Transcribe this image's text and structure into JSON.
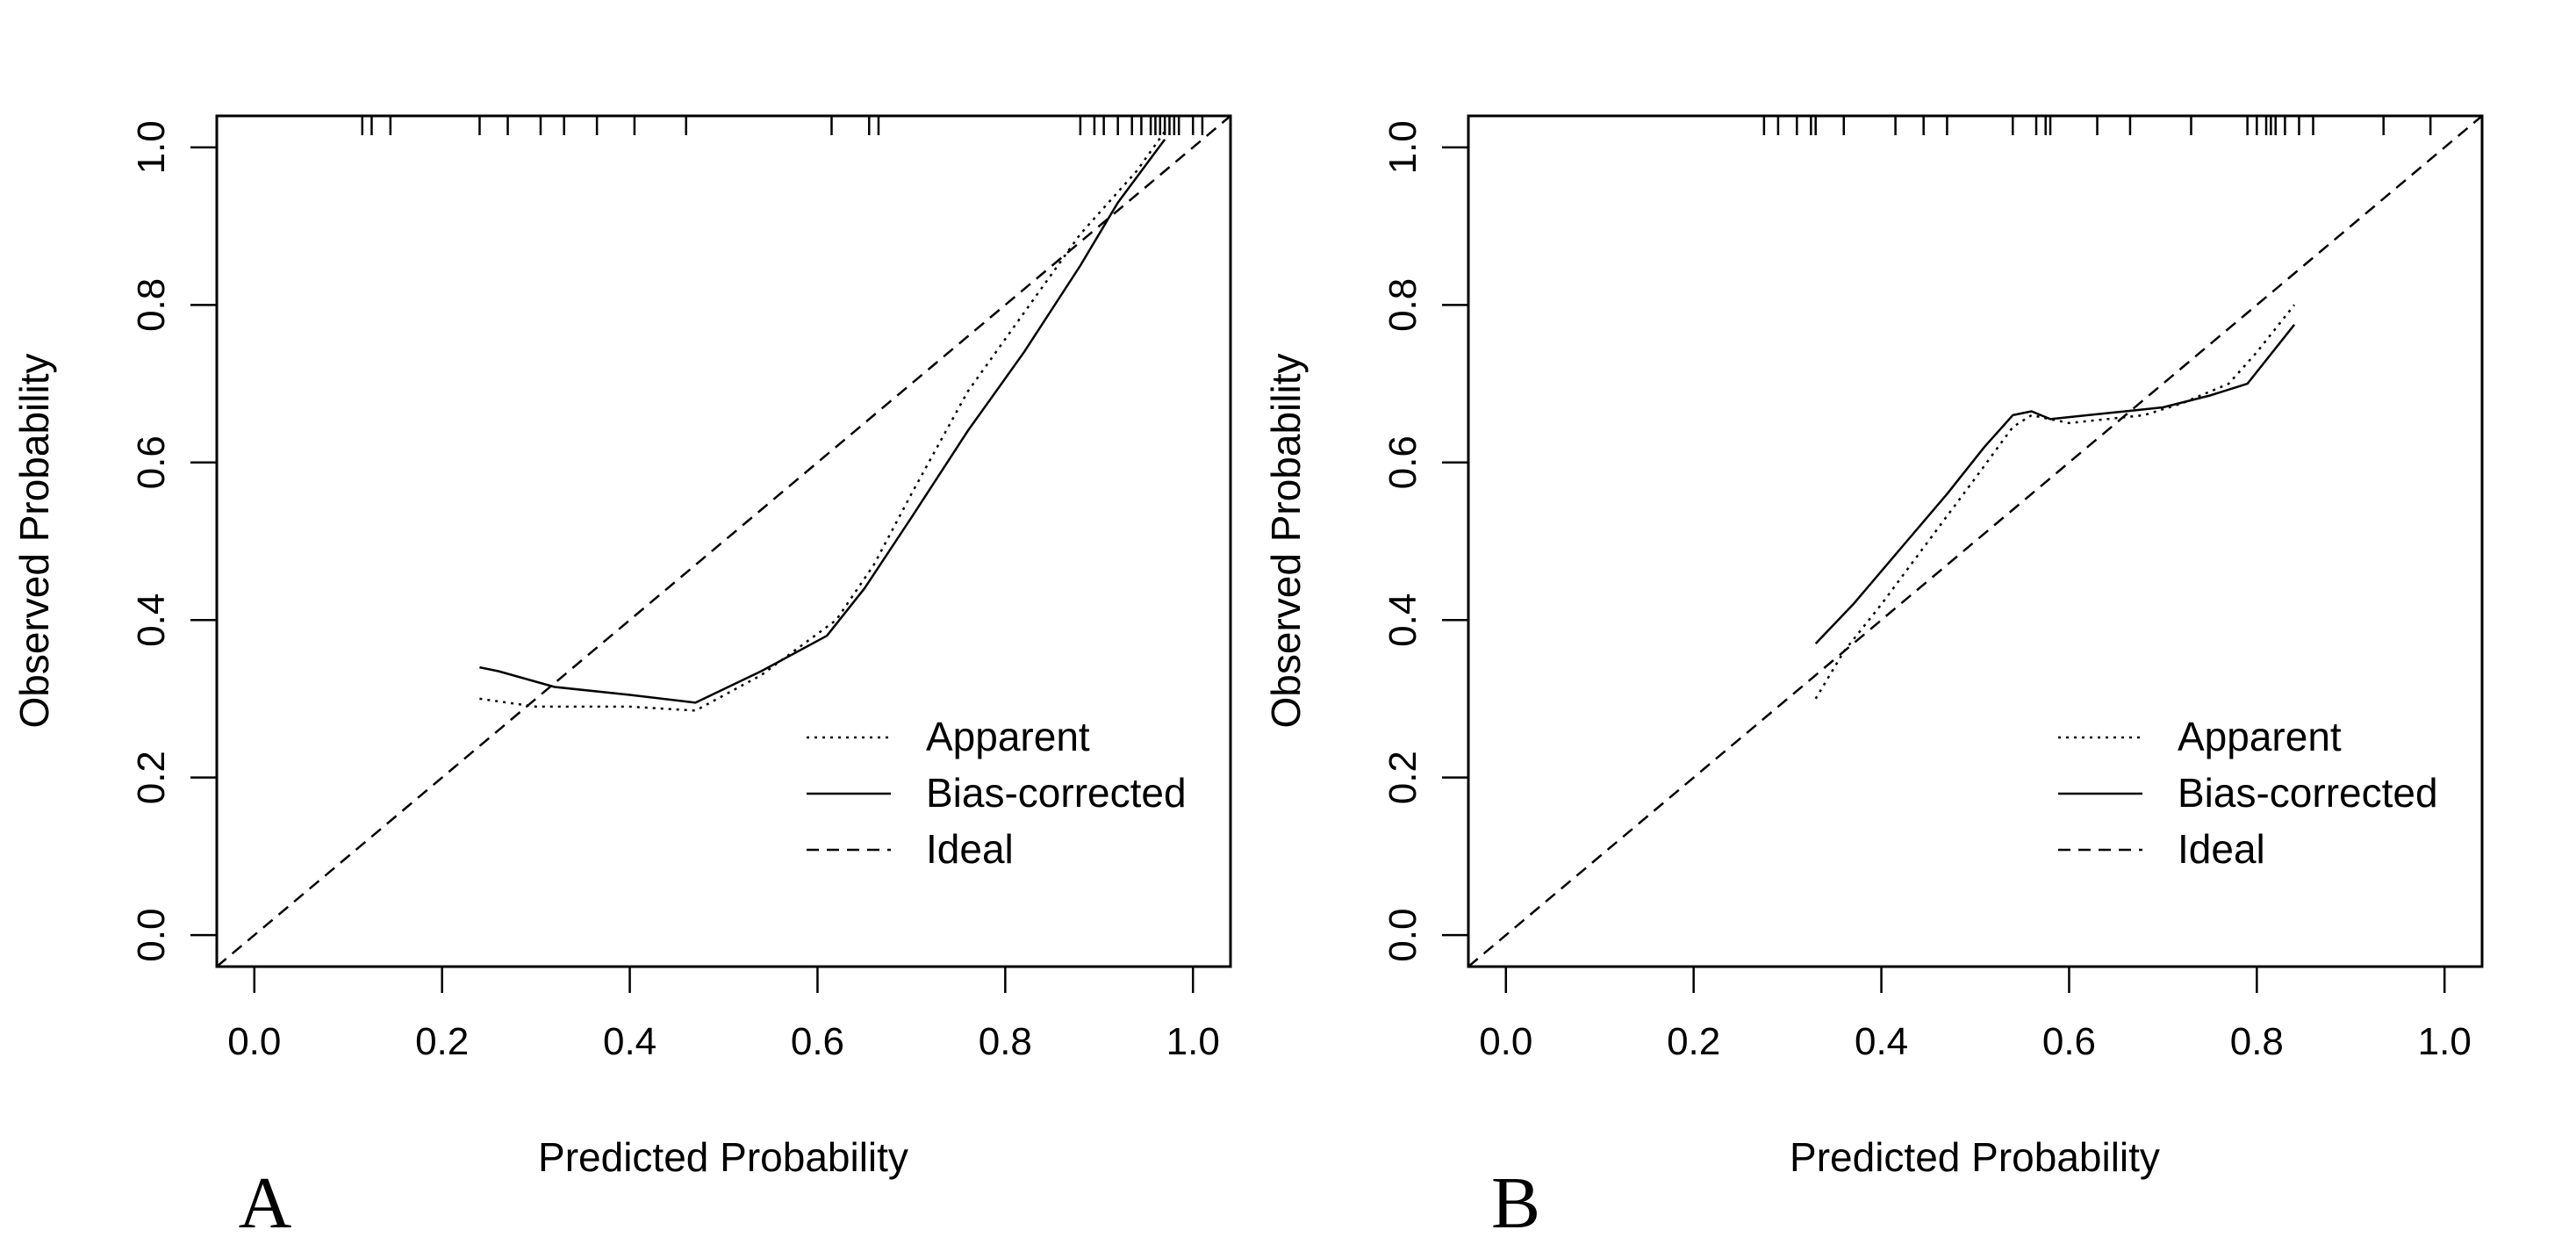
{
  "figure": {
    "colors": {
      "foreground": "#000000",
      "background": "#ffffff"
    }
  },
  "chart_data": [
    {
      "type": "line",
      "panel_label": "A",
      "xlabel": "Predicted Probability",
      "ylabel": "Observed Probability",
      "xlim": [
        -0.04,
        1.04
      ],
      "ylim": [
        -0.04,
        1.04
      ],
      "xticks": [
        "0.0",
        "0.2",
        "0.4",
        "0.6",
        "0.8",
        "1.0"
      ],
      "yticks": [
        "0.0",
        "0.2",
        "0.4",
        "0.6",
        "0.8",
        "1.0"
      ],
      "legend": {
        "position": "bottom-right",
        "entries": [
          "Apparent",
          "Bias-corrected",
          "Ideal"
        ]
      },
      "series": [
        {
          "name": "Apparent",
          "style": "dotted",
          "x": [
            0.24,
            0.3,
            0.4,
            0.47,
            0.54,
            0.62,
            0.66,
            0.7,
            0.76,
            0.82,
            0.88,
            0.94,
            0.97
          ],
          "y": [
            0.3,
            0.29,
            0.29,
            0.285,
            0.33,
            0.4,
            0.47,
            0.56,
            0.69,
            0.79,
            0.89,
            0.97,
            1.02
          ]
        },
        {
          "name": "Bias-corrected",
          "style": "solid",
          "x": [
            0.24,
            0.26,
            0.32,
            0.4,
            0.47,
            0.54,
            0.61,
            0.65,
            0.7,
            0.76,
            0.82,
            0.88,
            0.92,
            0.97
          ],
          "y": [
            0.34,
            0.335,
            0.315,
            0.305,
            0.295,
            0.335,
            0.38,
            0.44,
            0.53,
            0.64,
            0.74,
            0.85,
            0.93,
            1.01
          ]
        },
        {
          "name": "Ideal",
          "style": "dashed",
          "x": [
            -0.04,
            1.04
          ],
          "y": [
            -0.04,
            1.04
          ]
        }
      ],
      "rug": [
        0.115,
        0.125,
        0.145,
        0.24,
        0.27,
        0.305,
        0.33,
        0.365,
        0.405,
        0.46,
        0.615,
        0.655,
        0.665,
        0.88,
        0.895,
        0.905,
        0.92,
        0.935,
        0.945,
        0.955,
        0.96,
        0.965,
        0.97,
        0.975,
        0.98,
        0.985,
        1.0,
        1.01
      ]
    },
    {
      "type": "line",
      "panel_label": "B",
      "xlabel": "Predicted Probability",
      "ylabel": "Observed Probability",
      "xlim": [
        -0.04,
        1.04
      ],
      "ylim": [
        -0.04,
        1.04
      ],
      "xticks": [
        "0.0",
        "0.2",
        "0.4",
        "0.6",
        "0.8",
        "1.0"
      ],
      "yticks": [
        "0.0",
        "0.2",
        "0.4",
        "0.6",
        "0.8",
        "1.0"
      ],
      "legend": {
        "position": "bottom-right",
        "entries": [
          "Apparent",
          "Bias-corrected",
          "Ideal"
        ]
      },
      "series": [
        {
          "name": "Apparent",
          "style": "dotted",
          "x": [
            0.33,
            0.36,
            0.4,
            0.45,
            0.5,
            0.54,
            0.56,
            0.6,
            0.64,
            0.68,
            0.72,
            0.77,
            0.8,
            0.84
          ],
          "y": [
            0.3,
            0.36,
            0.42,
            0.5,
            0.58,
            0.645,
            0.66,
            0.65,
            0.655,
            0.66,
            0.675,
            0.7,
            0.74,
            0.8
          ]
        },
        {
          "name": "Bias-corrected",
          "style": "solid",
          "x": [
            0.33,
            0.37,
            0.42,
            0.47,
            0.51,
            0.54,
            0.56,
            0.58,
            0.62,
            0.66,
            0.7,
            0.75,
            0.79,
            0.84
          ],
          "y": [
            0.37,
            0.42,
            0.49,
            0.56,
            0.62,
            0.66,
            0.665,
            0.655,
            0.66,
            0.665,
            0.67,
            0.685,
            0.7,
            0.775
          ]
        },
        {
          "name": "Ideal",
          "style": "dashed",
          "x": [
            -0.04,
            1.04
          ],
          "y": [
            -0.04,
            1.04
          ]
        }
      ],
      "rug": [
        0.275,
        0.29,
        0.31,
        0.325,
        0.33,
        0.36,
        0.415,
        0.445,
        0.47,
        0.54,
        0.565,
        0.575,
        0.58,
        0.63,
        0.665,
        0.73,
        0.79,
        0.8,
        0.81,
        0.815,
        0.82,
        0.83,
        0.845,
        0.86,
        0.935,
        0.985
      ]
    }
  ]
}
